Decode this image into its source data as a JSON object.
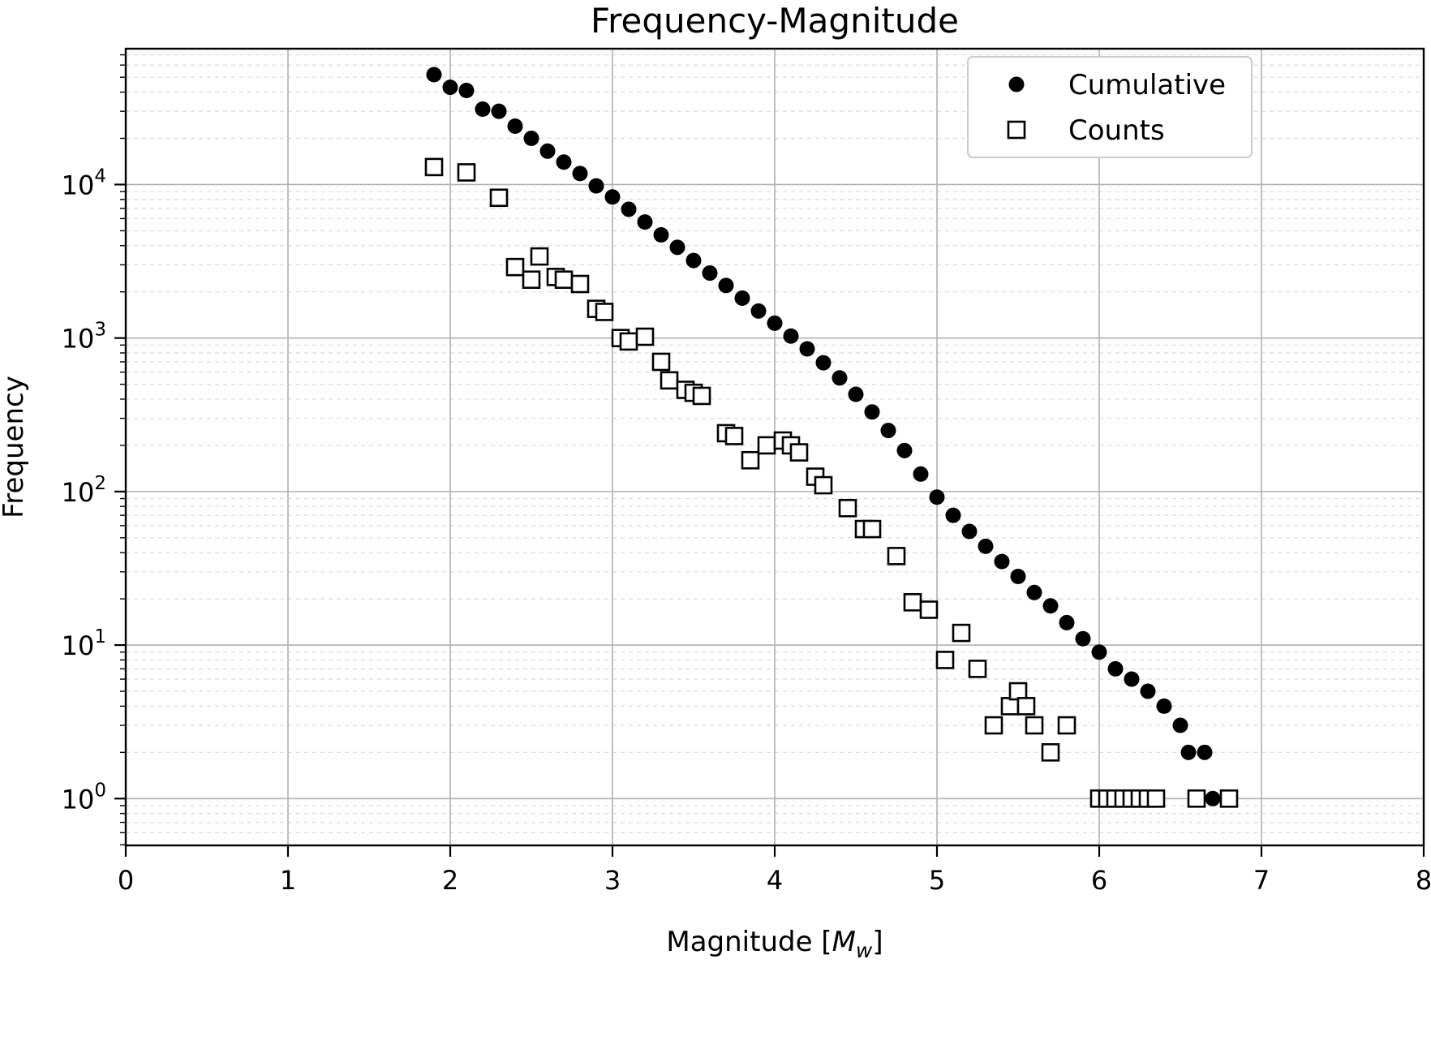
{
  "chart_data": {
    "type": "scatter",
    "title": "Frequency-Magnitude",
    "xlabel": {
      "prefix": "Magnitude [",
      "symbol": "M",
      "subscript": "w",
      "suffix": "]"
    },
    "ylabel": "Frequency",
    "xlim": [
      0,
      8
    ],
    "ylim_log10": [
      -0.305,
      4.885
    ],
    "x_ticks": [
      0,
      1,
      2,
      3,
      4,
      5,
      6,
      7,
      8
    ],
    "y_tick_exponents": [
      0,
      1,
      2,
      3,
      4
    ],
    "y_scale": "log",
    "grid": {
      "major": true,
      "minor_dashed": true
    },
    "colors": {
      "marker": "#000000",
      "grid_major": "#b0b0b0",
      "grid_minor": "#dcdcdc",
      "background": "#ffffff"
    },
    "legend": {
      "position": "upper right",
      "entries": [
        {
          "label": "Cumulative",
          "marker": "filled-circle"
        },
        {
          "label": "Counts",
          "marker": "open-square"
        }
      ]
    },
    "series": [
      {
        "name": "Cumulative",
        "marker": "filled-circle",
        "x": [
          1.9,
          2.0,
          2.1,
          2.2,
          2.3,
          2.4,
          2.5,
          2.6,
          2.7,
          2.8,
          2.9,
          3.0,
          3.1,
          3.2,
          3.3,
          3.4,
          3.5,
          3.6,
          3.7,
          3.8,
          3.9,
          4.0,
          4.1,
          4.2,
          4.3,
          4.4,
          4.5,
          4.6,
          4.7,
          4.8,
          4.9,
          5.0,
          5.1,
          5.2,
          5.3,
          5.4,
          5.5,
          5.6,
          5.7,
          5.8,
          5.9,
          6.0,
          6.1,
          6.2,
          6.3,
          6.4,
          6.5,
          6.55,
          6.65,
          6.7,
          6.8
        ],
        "y": [
          52000,
          43000,
          41000,
          31000,
          30000,
          24000,
          20000,
          16500,
          14000,
          11800,
          9800,
          8300,
          6900,
          5700,
          4700,
          3900,
          3200,
          2650,
          2200,
          1820,
          1500,
          1250,
          1030,
          850,
          690,
          550,
          430,
          330,
          250,
          185,
          130,
          92,
          70,
          55,
          44,
          35,
          28,
          22,
          18,
          14,
          11,
          9,
          7,
          6,
          5,
          4,
          3,
          2,
          2,
          1,
          1
        ]
      },
      {
        "name": "Counts",
        "marker": "open-square",
        "x": [
          1.9,
          2.1,
          2.3,
          2.4,
          2.5,
          2.55,
          2.65,
          2.7,
          2.8,
          2.9,
          2.95,
          3.05,
          3.1,
          3.2,
          3.3,
          3.35,
          3.45,
          3.5,
          3.55,
          3.7,
          3.75,
          3.85,
          3.95,
          4.05,
          4.1,
          4.15,
          4.25,
          4.3,
          4.45,
          4.55,
          4.6,
          4.75,
          4.85,
          4.95,
          5.05,
          5.15,
          5.25,
          5.35,
          5.45,
          5.5,
          5.55,
          5.6,
          5.7,
          5.8,
          6.0,
          6.05,
          6.1,
          6.15,
          6.2,
          6.25,
          6.3,
          6.35,
          6.6,
          6.8
        ],
        "y": [
          13000,
          12000,
          8200,
          2900,
          2400,
          3400,
          2500,
          2400,
          2250,
          1550,
          1480,
          1000,
          950,
          1020,
          700,
          530,
          460,
          440,
          420,
          240,
          230,
          160,
          200,
          215,
          200,
          180,
          125,
          110,
          78,
          57,
          57,
          38,
          19,
          17,
          8,
          12,
          7,
          3,
          4,
          5,
          4,
          3,
          2,
          3,
          1,
          1,
          1,
          1,
          1,
          1,
          1,
          1,
          1,
          1
        ]
      }
    ]
  }
}
